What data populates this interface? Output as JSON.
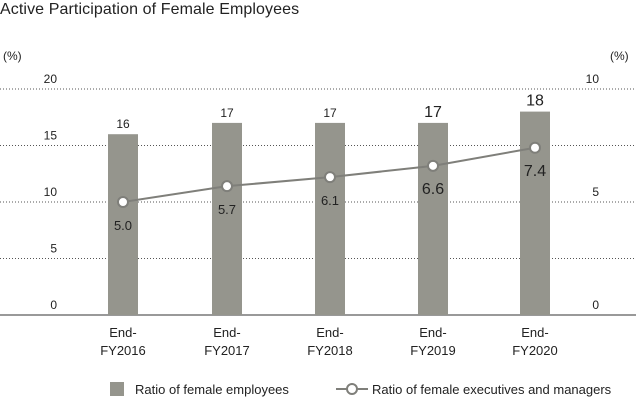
{
  "chart_data": {
    "type": "bar",
    "title": "Active Participation of Female Employees",
    "left_unit": "(%)",
    "right_unit": "(%)",
    "categories": [
      [
        "End-",
        "FY2016"
      ],
      [
        "End-",
        "FY2017"
      ],
      [
        "End-",
        "FY2018"
      ],
      [
        "End-",
        "FY2019"
      ],
      [
        "End-",
        "FY2020"
      ]
    ],
    "bars": {
      "name": "Ratio of female employees",
      "values": [
        16,
        17,
        17,
        17,
        18
      ],
      "labels": [
        "16",
        "17",
        "17",
        "17",
        "18"
      ],
      "color": "#95958d"
    },
    "line": {
      "name": "Ratio of female executives and managers",
      "values": [
        5.0,
        5.7,
        6.1,
        6.6,
        7.4
      ],
      "labels": [
        "5.0",
        "5.7",
        "6.1",
        "6.6",
        "7.4"
      ],
      "color": "#7f7f7a"
    },
    "left_axis": {
      "ylim": [
        0,
        20
      ],
      "ticks": [
        0,
        5,
        10,
        15,
        20
      ]
    },
    "right_axis": {
      "ylim": [
        0,
        10
      ],
      "ticks": [
        0,
        5,
        10
      ]
    },
    "grid": true,
    "legend_position": "bottom"
  }
}
